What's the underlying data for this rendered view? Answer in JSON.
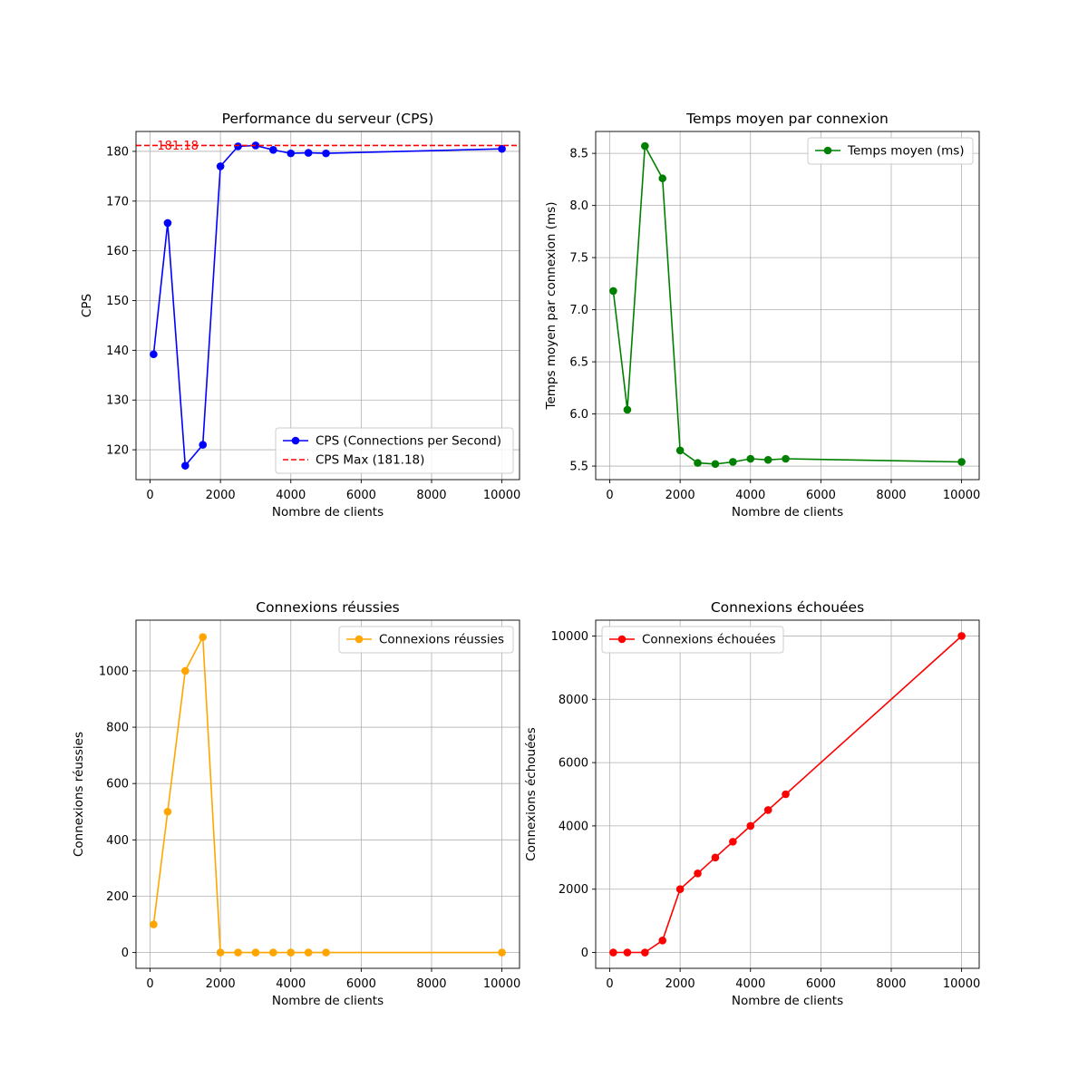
{
  "chart_data": [
    {
      "type": "line",
      "title": "Performance du serveur (CPS)",
      "xlabel": "Nombre de clients",
      "ylabel": "CPS",
      "xlim": [
        -400,
        10500
      ],
      "ylim": [
        114,
        184
      ],
      "xticks": [
        0,
        2000,
        4000,
        6000,
        8000,
        10000
      ],
      "yticks": [
        120,
        130,
        140,
        150,
        160,
        170,
        180
      ],
      "grid": true,
      "legend_position": "lower-right",
      "series": [
        {
          "name": "CPS (Connections per Second)",
          "color": "#0000ff",
          "style": "solid-marker",
          "x": [
            100,
            500,
            1000,
            1500,
            2000,
            2500,
            3000,
            3500,
            4000,
            4500,
            5000,
            10000
          ],
          "values": [
            139.2,
            165.6,
            116.8,
            121.0,
            177.0,
            181.0,
            181.18,
            180.3,
            179.6,
            179.7,
            179.6,
            180.5
          ]
        },
        {
          "name": "CPS Max (181.18)",
          "color": "#ff0000",
          "style": "dashed-hline",
          "y": 181.18
        }
      ],
      "annotations": [
        {
          "text": "181.18",
          "x": 100,
          "y": 181.18,
          "color": "#ff0000"
        }
      ]
    },
    {
      "type": "line",
      "title": "Temps moyen par connexion",
      "xlabel": "Nombre de clients",
      "ylabel": "Temps moyen par connexion (ms)",
      "xlim": [
        -400,
        10500
      ],
      "ylim": [
        5.37,
        8.71
      ],
      "xticks": [
        0,
        2000,
        4000,
        6000,
        8000,
        10000
      ],
      "yticks": [
        5.5,
        6.0,
        6.5,
        7.0,
        7.5,
        8.0,
        8.5
      ],
      "ytick_labels": [
        "5.5",
        "6.0",
        "6.5",
        "7.0",
        "7.5",
        "8.0",
        "8.5"
      ],
      "grid": true,
      "legend_position": "upper-right",
      "series": [
        {
          "name": "Temps moyen (ms)",
          "color": "#008000",
          "style": "solid-marker",
          "x": [
            100,
            500,
            1000,
            1500,
            2000,
            2500,
            3000,
            3500,
            4000,
            4500,
            5000,
            10000
          ],
          "values": [
            7.18,
            6.04,
            8.57,
            8.26,
            5.65,
            5.53,
            5.52,
            5.54,
            5.57,
            5.56,
            5.57,
            5.54
          ]
        }
      ]
    },
    {
      "type": "line",
      "title": "Connexions réussies",
      "xlabel": "Nombre de clients",
      "ylabel": "Connexions réussies",
      "xlim": [
        -400,
        10500
      ],
      "ylim": [
        -56,
        1180
      ],
      "xticks": [
        0,
        2000,
        4000,
        6000,
        8000,
        10000
      ],
      "yticks": [
        0,
        200,
        400,
        600,
        800,
        1000
      ],
      "grid": true,
      "legend_position": "upper-right",
      "series": [
        {
          "name": "Connexions réussies",
          "color": "#ffa500",
          "style": "solid-marker",
          "x": [
            100,
            500,
            1000,
            1500,
            2000,
            2500,
            3000,
            3500,
            4000,
            4500,
            5000,
            10000
          ],
          "values": [
            100,
            500,
            1000,
            1120,
            0,
            0,
            0,
            0,
            0,
            0,
            0,
            0
          ]
        }
      ]
    },
    {
      "type": "line",
      "title": "Connexions échouées",
      "xlabel": "Nombre de clients",
      "ylabel": "Connexions échouées",
      "xlim": [
        -400,
        10500
      ],
      "ylim": [
        -500,
        10500
      ],
      "xticks": [
        0,
        2000,
        4000,
        6000,
        8000,
        10000
      ],
      "yticks": [
        0,
        2000,
        4000,
        6000,
        8000,
        10000
      ],
      "grid": true,
      "legend_position": "upper-left",
      "series": [
        {
          "name": "Connexions échouées",
          "color": "#ff0000",
          "style": "solid-marker",
          "x": [
            100,
            500,
            1000,
            1500,
            2000,
            2500,
            3000,
            3500,
            4000,
            4500,
            5000,
            10000
          ],
          "values": [
            0,
            0,
            0,
            380,
            2000,
            2500,
            3000,
            3500,
            4000,
            4500,
            5000,
            10000
          ]
        }
      ]
    }
  ]
}
